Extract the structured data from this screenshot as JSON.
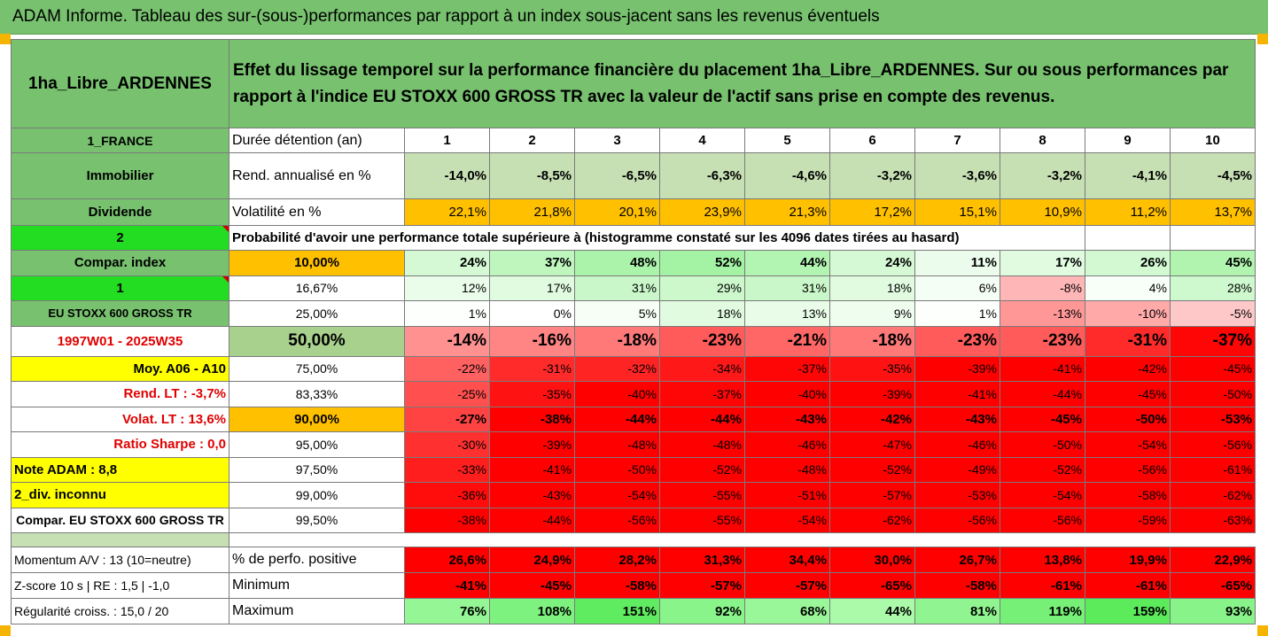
{
  "title": "ADAM Informe. Tableau des sur-(sous-)performances par rapport à un index sous-jacent sans les revenus éventuels",
  "header": {
    "asset": "1ha_Libre_ARDENNES",
    "description": "Effet du lissage temporel sur la performance financière du placement 1ha_Libre_ARDENNES. Sur ou sous performances par rapport à l'indice EU STOXX 600 GROSS TR avec la valeur de l'actif sans prise en compte des revenus."
  },
  "row_duration": {
    "left": "1_FRANCE",
    "label": "Durée détention (an)",
    "years": [
      "1",
      "2",
      "3",
      "4",
      "5",
      "6",
      "7",
      "8",
      "9",
      "10"
    ]
  },
  "row_return": {
    "left": "Immobilier",
    "label": "Rend. annualisé en %",
    "values": [
      "-14,0%",
      "-8,5%",
      "-6,5%",
      "-6,3%",
      "-4,6%",
      "-3,2%",
      "-3,6%",
      "-3,2%",
      "-4,1%",
      "-4,5%"
    ]
  },
  "row_vol": {
    "left": "Dividende",
    "label": "Volatilité en %",
    "values": [
      "22,1%",
      "21,8%",
      "20,1%",
      "23,9%",
      "21,3%",
      "17,2%",
      "15,1%",
      "10,9%",
      "11,2%",
      "13,7%"
    ]
  },
  "row_prob": {
    "left": "2",
    "text": "Probabilité d'avoir une performance totale supérieure à (histogramme constaté sur les 4096 dates tirées au hasard)"
  },
  "percentile_rows": [
    {
      "left": "Compar. index",
      "pct": "10,00%",
      "values": [
        "24%",
        "37%",
        "48%",
        "52%",
        "44%",
        "24%",
        "11%",
        "17%",
        "26%",
        "45%"
      ]
    },
    {
      "left": "1",
      "pct": "16,67%",
      "values": [
        "12%",
        "17%",
        "31%",
        "29%",
        "31%",
        "18%",
        "6%",
        "-8%",
        "4%",
        "28%"
      ]
    },
    {
      "left": "EU STOXX 600 GROSS TR",
      "pct": "25,00%",
      "values": [
        "1%",
        "0%",
        "5%",
        "18%",
        "13%",
        "9%",
        "1%",
        "-13%",
        "-10%",
        "-5%"
      ]
    },
    {
      "left": "1997W01 - 2025W35",
      "pct": "50,00%",
      "values": [
        "-14%",
        "-16%",
        "-18%",
        "-23%",
        "-21%",
        "-18%",
        "-23%",
        "-23%",
        "-31%",
        "-37%"
      ]
    },
    {
      "left": "Moy. A06 - A10",
      "pct": "75,00%",
      "values": [
        "-22%",
        "-31%",
        "-32%",
        "-34%",
        "-37%",
        "-35%",
        "-39%",
        "-41%",
        "-42%",
        "-45%"
      ]
    },
    {
      "left": "Rend. LT :   -3,7%",
      "pct": "83,33%",
      "values": [
        "-25%",
        "-35%",
        "-40%",
        "-37%",
        "-40%",
        "-39%",
        "-41%",
        "-44%",
        "-45%",
        "-50%"
      ]
    },
    {
      "left": "Volat. LT :   13,6%",
      "pct": "90,00%",
      "values": [
        "-27%",
        "-38%",
        "-44%",
        "-44%",
        "-43%",
        "-42%",
        "-43%",
        "-45%",
        "-50%",
        "-53%"
      ]
    },
    {
      "left": "Ratio Sharpe :   0,0",
      "pct": "95,00%",
      "values": [
        "-30%",
        "-39%",
        "-48%",
        "-48%",
        "-46%",
        "-47%",
        "-46%",
        "-50%",
        "-54%",
        "-56%"
      ]
    },
    {
      "left": "Note ADAM : 8,8",
      "pct": "97,50%",
      "values": [
        "-33%",
        "-41%",
        "-50%",
        "-52%",
        "-48%",
        "-52%",
        "-49%",
        "-52%",
        "-56%",
        "-61%"
      ]
    },
    {
      "left": "2_div. inconnu",
      "pct": "99,00%",
      "values": [
        "-36%",
        "-43%",
        "-54%",
        "-55%",
        "-51%",
        "-57%",
        "-53%",
        "-54%",
        "-58%",
        "-62%"
      ]
    },
    {
      "left": "Compar. EU STOXX 600 GROSS TR",
      "pct": "99,50%",
      "values": [
        "-38%",
        "-44%",
        "-56%",
        "-55%",
        "-54%",
        "-62%",
        "-56%",
        "-56%",
        "-59%",
        "-63%"
      ]
    }
  ],
  "footer_rows": [
    {
      "left": "Momentum A/V : 13 (10=neutre)",
      "label": "% de perfo. positive",
      "values": [
        "26,6%",
        "24,9%",
        "28,2%",
        "31,3%",
        "34,4%",
        "30,0%",
        "26,7%",
        "13,8%",
        "19,9%",
        "22,9%"
      ]
    },
    {
      "left": "Z-score 10 s  |  RE : 1,5  |  -1,0",
      "label": "Minimum",
      "values": [
        "-41%",
        "-45%",
        "-58%",
        "-57%",
        "-57%",
        "-65%",
        "-58%",
        "-61%",
        "-61%",
        "-65%"
      ]
    },
    {
      "left": "Régularité croiss. : 15,0 / 20",
      "label": "Maximum",
      "values": [
        "76%",
        "108%",
        "151%",
        "92%",
        "68%",
        "44%",
        "81%",
        "119%",
        "159%",
        "93%"
      ]
    }
  ],
  "colors": {
    "green_header": "#77c16f",
    "lime": "#22dd22",
    "yellow": "#ffff00",
    "orange": "#ffc000",
    "light_green": "#c6e0b4",
    "red": "#ff0000"
  }
}
